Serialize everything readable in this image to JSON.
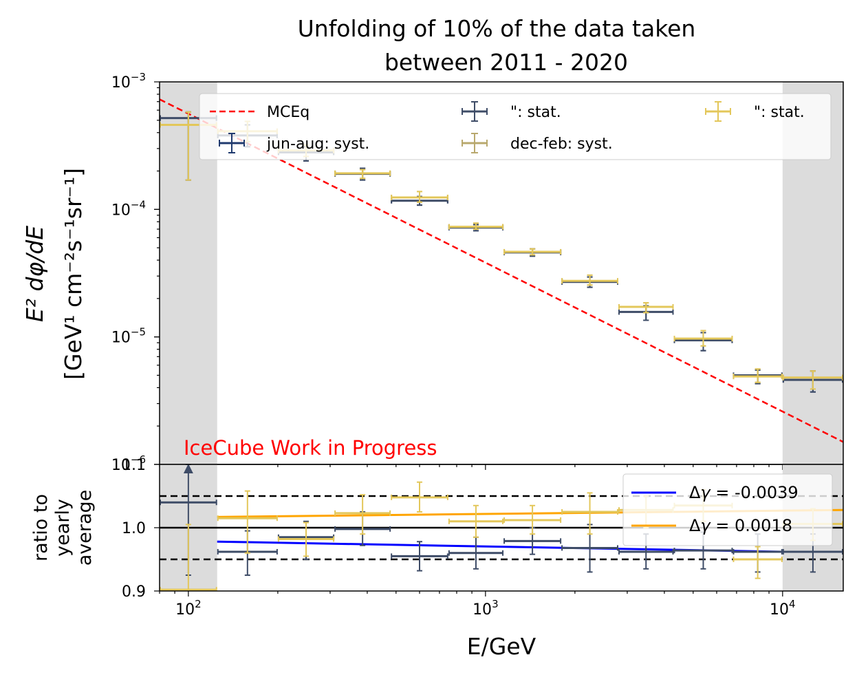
{
  "chart_data": {
    "type": "scatter",
    "title_line1": "Unfolding of 10% of the data taken",
    "title_line2": "between  2011 - 2020",
    "watermark": "IceCube Work in Progress",
    "xlabel": "E/GeV",
    "x_scale": "log",
    "xlim": [
      80,
      16000
    ],
    "x_ticks": [
      {
        "value": 100,
        "exp": "2"
      },
      {
        "value": 1000,
        "exp": "3"
      },
      {
        "value": 10000,
        "exp": "4"
      }
    ],
    "colors": {
      "mceq": "#ff0000",
      "jun_aug": "#3e4c67",
      "jun_aug_syst": "#1f3a6e",
      "dec_feb": "#e3c75a",
      "dec_feb_syst": "#b8a86d",
      "fit_jun_aug": "#0000ff",
      "fit_dec_feb": "#ffa500",
      "excluded_region": "#dcdcdc"
    },
    "excluded_regions": [
      [
        80,
        125
      ],
      [
        10000,
        16000
      ]
    ],
    "top_panel": {
      "ylabel_line1": "E² dφ/dE",
      "ylabel_line2": "[GeV¹ cm⁻²s⁻¹sr⁻¹]",
      "y_scale": "log",
      "ylim": [
        1e-06,
        0.001
      ],
      "y_ticks": [
        {
          "value": 0.001,
          "exp": "−3"
        },
        {
          "value": 0.0001,
          "exp": "−4"
        },
        {
          "value": 1e-05,
          "exp": "−5"
        },
        {
          "value": 1e-06,
          "exp": "−6"
        }
      ],
      "legend": {
        "placement": "top",
        "entries": [
          "MCEq",
          "\": stat.",
          "\": stat.",
          "jun-aug: syst.",
          "dec-feb: syst."
        ]
      },
      "mceq_line": {
        "name": "MCEq",
        "x": [
          80,
          16000
        ],
        "y": [
          0.00073,
          1.5e-06
        ]
      },
      "bin_edges": [
        80,
        125,
        200,
        310,
        480,
        750,
        1150,
        1800,
        2800,
        4300,
        6800,
        10000,
        16000
      ],
      "series": [
        {
          "name": "jun-aug",
          "y": [
            0.00052,
            0.00038,
            0.00028,
            0.00019,
            0.000117,
            7.2e-05,
            4.6e-05,
            2.7e-05,
            1.57e-05,
            9.4e-06,
            5e-06,
            4.6e-06
          ],
          "stat_err": [
            [
              0.00017,
              0.00058
            ],
            [
              0.00031,
              0.00046
            ],
            [
              0.00024,
              0.00031
            ],
            [
              0.00017,
              0.00021
            ],
            [
              0.000108,
              0.000126
            ],
            [
              6.8e-05,
              7.6e-05
            ],
            [
              4.3e-05,
              4.9e-05
            ],
            [
              2.45e-05,
              2.95e-05
            ],
            [
              1.35e-05,
              1.75e-05
            ],
            [
              7.8e-06,
              1.08e-05
            ],
            [
              4.3e-06,
              5.5e-06
            ],
            [
              3.7e-06,
              5.4e-06
            ]
          ],
          "syst_err": [
            [
              0.00017,
              0.00058
            ],
            [
              0.00031,
              0.00046
            ],
            [
              0.00024,
              0.00031
            ],
            [
              0.00017,
              0.00021
            ],
            [
              0.000108,
              0.000126
            ],
            [
              6.8e-05,
              7.6e-05
            ],
            [
              4.3e-05,
              4.9e-05
            ],
            [
              2.45e-05,
              2.95e-05
            ],
            [
              1.35e-05,
              1.75e-05
            ],
            [
              7.8e-06,
              1.08e-05
            ],
            [
              4.3e-06,
              5.5e-06
            ],
            [
              3.7e-06,
              5.4e-06
            ]
          ]
        },
        {
          "name": "dec-feb",
          "y": [
            0.00046,
            0.00041,
            0.00029,
            0.000192,
            0.000124,
            7.3e-05,
            4.65e-05,
            2.75e-05,
            1.72e-05,
            9.7e-06,
            4.9e-06,
            4.8e-06
          ],
          "stat_err": [
            [
              0.00017,
              0.00058
            ],
            [
              0.00034,
              0.00049
            ],
            [
              0.00026,
              0.00032
            ],
            [
              0.000175,
              0.000205
            ],
            [
              0.000114,
              0.000138
            ],
            [
              7e-05,
              7.8e-05
            ],
            [
              4.4e-05,
              4.9e-05
            ],
            [
              2.55e-05,
              3.05e-05
            ],
            [
              1.55e-05,
              1.85e-05
            ],
            [
              8.5e-06,
              1.12e-05
            ],
            [
              4.4e-06,
              5.6e-06
            ],
            [
              3.9e-06,
              5.4e-06
            ]
          ],
          "syst_err": [
            [
              0.00017,
              0.00058
            ],
            [
              0.00034,
              0.00049
            ],
            [
              0.00026,
              0.00032
            ],
            [
              0.000175,
              0.000205
            ],
            [
              0.000114,
              0.000138
            ],
            [
              7e-05,
              7.8e-05
            ],
            [
              4.4e-05,
              4.9e-05
            ],
            [
              2.55e-05,
              3.05e-05
            ],
            [
              1.55e-05,
              1.85e-05
            ],
            [
              8.5e-06,
              1.12e-05
            ],
            [
              4.4e-06,
              5.6e-06
            ],
            [
              3.9e-06,
              5.4e-06
            ]
          ]
        }
      ]
    },
    "bottom_panel": {
      "ylabel_line1": "ratio to",
      "ylabel_line2": "yearly",
      "ylabel_line3": "average",
      "ylim": [
        0.9,
        1.1
      ],
      "y_tick_labels": [
        "1.1",
        "1.0",
        "0.9"
      ],
      "y_ticks": [
        1.1,
        1.0,
        0.9
      ],
      "reference_lines": {
        "solid": 1.0,
        "dashed": [
          0.95,
          1.05
        ]
      },
      "legend": {
        "placement": "upper right",
        "entries": [
          {
            "prefix": "Δ",
            "symbol": "γ",
            "value": " = -0.0039"
          },
          {
            "prefix": "Δ",
            "symbol": "γ",
            "value": " = 0.0018"
          }
        ]
      },
      "fit_lines": [
        {
          "name": "jun-aug",
          "x": [
            125,
            10000
          ],
          "y": [
            0.978,
            0.962
          ]
        },
        {
          "name": "dec-feb",
          "x": [
            125,
            16000
          ],
          "y": [
            1.017,
            1.028
          ]
        }
      ],
      "series": [
        {
          "name": "jun-aug",
          "y": [
            1.04,
            0.962,
            0.985,
            0.998,
            0.955,
            0.96,
            0.979,
            0.968,
            0.962,
            0.964,
            0.962,
            0.962
          ],
          "err": [
            [
              0.925,
              1.1
            ],
            [
              0.925,
              0.995
            ],
            [
              0.95,
              1.01
            ],
            [
              0.972,
              1.025
            ],
            [
              0.932,
              0.978
            ],
            [
              0.935,
              0.985
            ],
            [
              0.958,
              1.0
            ],
            [
              0.93,
              1.005
            ],
            [
              0.935,
              0.99
            ],
            [
              0.935,
              0.993
            ],
            [
              0.93,
              0.99
            ],
            [
              0.93,
              0.99
            ]
          ],
          "arrow_index": 0
        },
        {
          "name": "dec-feb",
          "y": [
            0.902,
            1.015,
            0.982,
            1.023,
            1.048,
            1.01,
            1.012,
            1.025,
            1.028,
            1.035,
            0.95,
            1.006
          ],
          "err": [
            [
              0.9,
              1.005
            ],
            [
              0.96,
              1.058
            ],
            [
              0.955,
              1.008
            ],
            [
              0.99,
              1.052
            ],
            [
              1.025,
              1.072
            ],
            [
              0.985,
              1.035
            ],
            [
              0.99,
              1.035
            ],
            [
              0.99,
              1.055
            ],
            [
              1.0,
              1.05
            ],
            [
              1.01,
              1.06
            ],
            [
              0.92,
              0.97
            ],
            [
              0.98,
              1.03
            ]
          ]
        }
      ]
    }
  }
}
